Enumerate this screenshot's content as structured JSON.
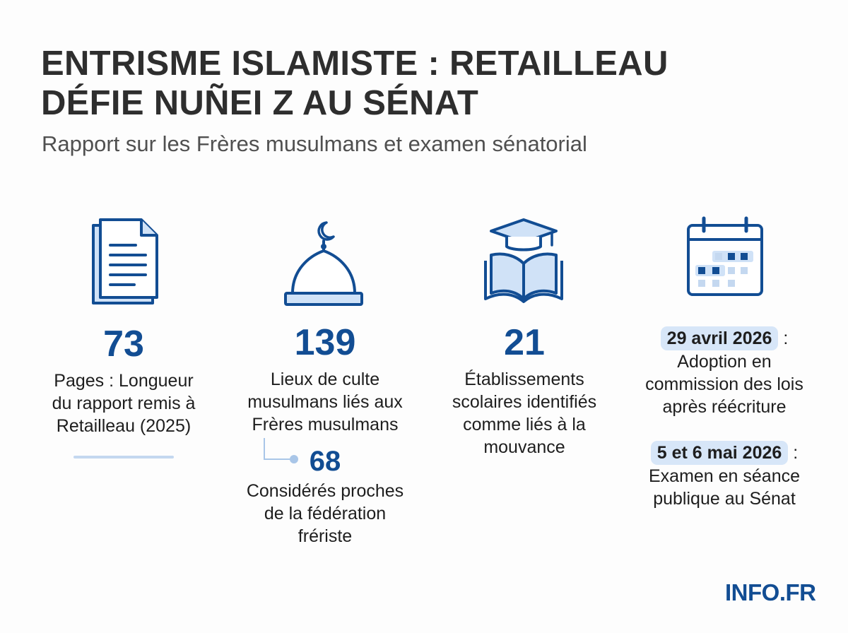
{
  "header": {
    "title_line1": "ENTRISME ISLAMISTE : RETAILLEAU",
    "title_line2": "DÉFIE NUÑEI Z AU SÉNAT",
    "subtitle": "Rapport sur les Frères musulmans et examen sénatorial"
  },
  "stats": [
    {
      "icon": "document-icon",
      "value": "73",
      "desc_lines": [
        "Pages : Longueur",
        "du rapport remis à",
        "Retailleau (2025)"
      ]
    },
    {
      "icon": "mosque-dome-icon",
      "value": "139",
      "desc_lines": [
        "Lieux de culte",
        "musulmans liés aux",
        "Frères musulmans"
      ],
      "sub_value": "68",
      "sub_desc_lines": [
        "Considérés proches",
        "de la fédération",
        "fr&eacute;riste"
      ]
    },
    {
      "icon": "graduation-book-icon",
      "value": "21",
      "desc_lines": [
        "Établissements",
        "scolaires identifiés",
        "comme liés à la",
        "mouvance"
      ]
    }
  ],
  "timeline": {
    "icon": "calendar-icon",
    "events": [
      {
        "date": "29 avril 2026",
        "separator": " :",
        "desc_lines": [
          "Adoption en",
          "commission des lois",
          "après réécriture"
        ]
      },
      {
        "date": "5 et 6 mai 2026",
        "separator": " :",
        "desc_lines": [
          "Examen en séance",
          "publique au Sénat"
        ]
      }
    ]
  },
  "brand": "INFO.FR",
  "colors": {
    "accent": "#124d93",
    "light_accent": "#d7e6f8",
    "title": "#2e2e2e"
  }
}
